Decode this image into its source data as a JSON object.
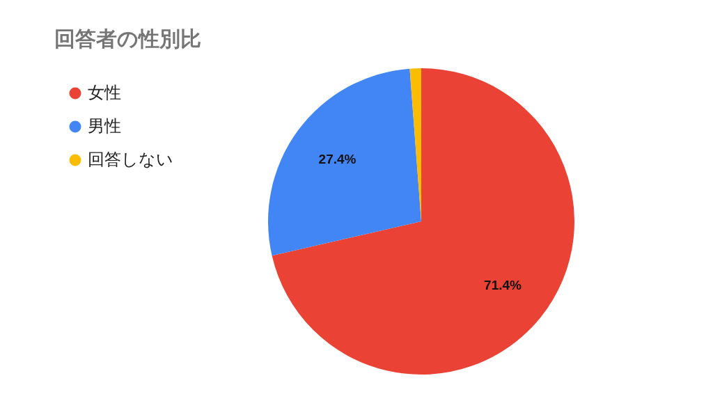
{
  "chart_data": {
    "type": "pie",
    "title": "回答者の性別比",
    "categories": [
      "女性",
      "男性",
      "回答しない"
    ],
    "values": [
      71.4,
      27.4,
      1.2
    ],
    "colors": [
      "#ea4335",
      "#4285f4",
      "#fbbc04"
    ],
    "value_labels": [
      "71.4%",
      "27.4%",
      null
    ],
    "legend": "top left"
  }
}
